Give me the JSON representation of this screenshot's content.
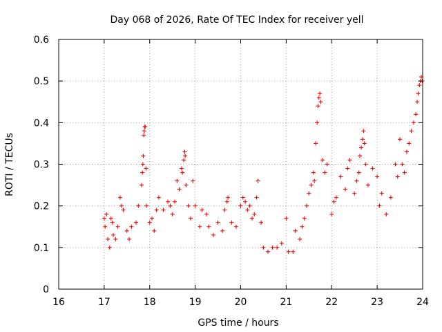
{
  "chart_data": {
    "type": "scatter",
    "title": "Day 068 of 2026, Rate Of TEC Index for receiver yell",
    "xlabel": "GPS time / hours",
    "ylabel": "ROTI / TECUs",
    "xlim": [
      16,
      24
    ],
    "ylim": [
      0,
      0.6
    ],
    "x_ticks": [
      16,
      17,
      18,
      19,
      20,
      21,
      22,
      23,
      24
    ],
    "y_ticks": [
      0,
      0.1,
      0.2,
      0.3,
      0.4,
      0.5,
      0.6
    ],
    "x_tick_labels": [
      "16",
      "17",
      "18",
      "19",
      "20",
      "21",
      "22",
      "23",
      "24"
    ],
    "y_tick_labels": [
      "0",
      "0.1",
      "0.2",
      "0.3",
      "0.4",
      "0.5",
      "0.6"
    ],
    "grid": true,
    "marker": "+",
    "series_color": "#ff0000",
    "series": [
      {
        "name": "ROTI",
        "points": [
          [
            17.0,
            0.17
          ],
          [
            17.02,
            0.15
          ],
          [
            17.05,
            0.18
          ],
          [
            17.08,
            0.12
          ],
          [
            17.12,
            0.1
          ],
          [
            17.15,
            0.17
          ],
          [
            17.18,
            0.16
          ],
          [
            17.2,
            0.13
          ],
          [
            17.25,
            0.12
          ],
          [
            17.3,
            0.15
          ],
          [
            17.35,
            0.22
          ],
          [
            17.38,
            0.2
          ],
          [
            17.42,
            0.19
          ],
          [
            17.5,
            0.14
          ],
          [
            17.55,
            0.12
          ],
          [
            17.6,
            0.15
          ],
          [
            17.7,
            0.16
          ],
          [
            17.75,
            0.2
          ],
          [
            17.82,
            0.25
          ],
          [
            17.84,
            0.28
          ],
          [
            17.85,
            0.3
          ],
          [
            17.86,
            0.32
          ],
          [
            17.87,
            0.37
          ],
          [
            17.88,
            0.38
          ],
          [
            17.89,
            0.39
          ],
          [
            17.9,
            0.39
          ],
          [
            17.92,
            0.29
          ],
          [
            17.93,
            0.2
          ],
          [
            18.0,
            0.16
          ],
          [
            18.05,
            0.17
          ],
          [
            18.1,
            0.14
          ],
          [
            18.15,
            0.19
          ],
          [
            18.2,
            0.22
          ],
          [
            18.3,
            0.19
          ],
          [
            18.4,
            0.21
          ],
          [
            18.45,
            0.2
          ],
          [
            18.5,
            0.18
          ],
          [
            18.55,
            0.21
          ],
          [
            18.6,
            0.26
          ],
          [
            18.65,
            0.24
          ],
          [
            18.7,
            0.29
          ],
          [
            18.72,
            0.28
          ],
          [
            18.75,
            0.31
          ],
          [
            18.77,
            0.33
          ],
          [
            18.78,
            0.32
          ],
          [
            18.8,
            0.25
          ],
          [
            18.85,
            0.2
          ],
          [
            18.9,
            0.17
          ],
          [
            18.95,
            0.26
          ],
          [
            19.0,
            0.2
          ],
          [
            19.1,
            0.15
          ],
          [
            19.15,
            0.19
          ],
          [
            19.25,
            0.18
          ],
          [
            19.3,
            0.15
          ],
          [
            19.4,
            0.13
          ],
          [
            19.5,
            0.16
          ],
          [
            19.6,
            0.14
          ],
          [
            19.65,
            0.19
          ],
          [
            19.7,
            0.21
          ],
          [
            19.72,
            0.22
          ],
          [
            19.8,
            0.16
          ],
          [
            19.9,
            0.15
          ],
          [
            20.0,
            0.2
          ],
          [
            20.05,
            0.22
          ],
          [
            20.1,
            0.21
          ],
          [
            20.15,
            0.19
          ],
          [
            20.2,
            0.2
          ],
          [
            20.25,
            0.17
          ],
          [
            20.3,
            0.18
          ],
          [
            20.35,
            0.22
          ],
          [
            20.38,
            0.26
          ],
          [
            20.45,
            0.16
          ],
          [
            20.5,
            0.1
          ],
          [
            20.6,
            0.09
          ],
          [
            20.7,
            0.1
          ],
          [
            20.8,
            0.1
          ],
          [
            20.9,
            0.11
          ],
          [
            21.0,
            0.17
          ],
          [
            21.05,
            0.09
          ],
          [
            21.15,
            0.09
          ],
          [
            21.2,
            0.14
          ],
          [
            21.3,
            0.12
          ],
          [
            21.35,
            0.15
          ],
          [
            21.4,
            0.17
          ],
          [
            21.45,
            0.2
          ],
          [
            21.5,
            0.23
          ],
          [
            21.55,
            0.25
          ],
          [
            21.6,
            0.28
          ],
          [
            21.62,
            0.26
          ],
          [
            21.65,
            0.35
          ],
          [
            21.68,
            0.4
          ],
          [
            21.7,
            0.44
          ],
          [
            21.72,
            0.46
          ],
          [
            21.74,
            0.47
          ],
          [
            21.76,
            0.45
          ],
          [
            21.8,
            0.31
          ],
          [
            21.85,
            0.28
          ],
          [
            21.9,
            0.3
          ],
          [
            22.0,
            0.18
          ],
          [
            22.05,
            0.21
          ],
          [
            22.1,
            0.22
          ],
          [
            22.2,
            0.27
          ],
          [
            22.3,
            0.24
          ],
          [
            22.35,
            0.29
          ],
          [
            22.4,
            0.31
          ],
          [
            22.5,
            0.23
          ],
          [
            22.55,
            0.26
          ],
          [
            22.6,
            0.28
          ],
          [
            22.62,
            0.32
          ],
          [
            22.65,
            0.34
          ],
          [
            22.68,
            0.36
          ],
          [
            22.7,
            0.38
          ],
          [
            22.72,
            0.35
          ],
          [
            22.75,
            0.3
          ],
          [
            22.8,
            0.25
          ],
          [
            22.9,
            0.29
          ],
          [
            23.0,
            0.27
          ],
          [
            23.05,
            0.2
          ],
          [
            23.1,
            0.23
          ],
          [
            23.2,
            0.18
          ],
          [
            23.3,
            0.22
          ],
          [
            23.4,
            0.3
          ],
          [
            23.45,
            0.27
          ],
          [
            23.5,
            0.36
          ],
          [
            23.55,
            0.3
          ],
          [
            23.6,
            0.28
          ],
          [
            23.65,
            0.33
          ],
          [
            23.7,
            0.35
          ],
          [
            23.75,
            0.38
          ],
          [
            23.8,
            0.4
          ],
          [
            23.85,
            0.42
          ],
          [
            23.88,
            0.45
          ],
          [
            23.9,
            0.47
          ],
          [
            23.93,
            0.49
          ],
          [
            23.95,
            0.5
          ],
          [
            23.97,
            0.51
          ],
          [
            23.99,
            0.5
          ]
        ]
      }
    ]
  }
}
